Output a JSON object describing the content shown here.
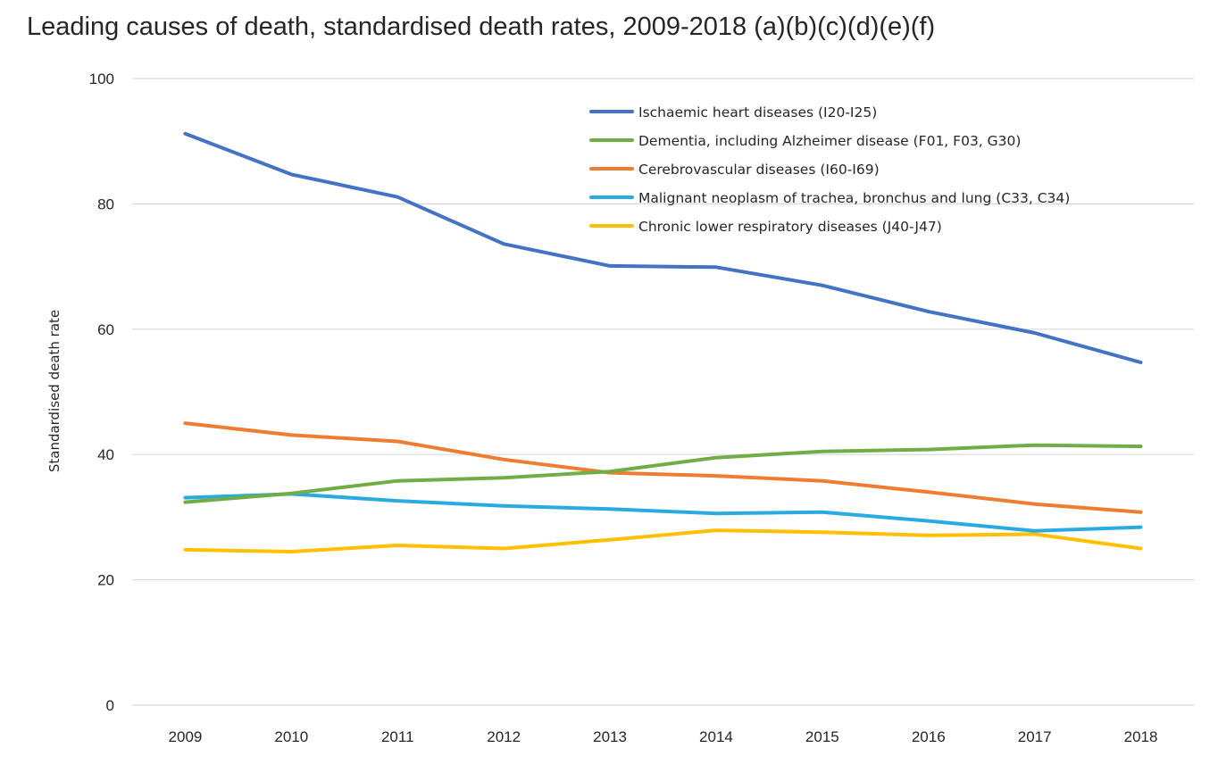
{
  "chart_data": {
    "type": "line",
    "title": "Leading causes of death, standardised death rates, 2009-2018 (a)(b)(c)(d)(e)(f)",
    "xlabel": "",
    "ylabel": "Standardised death rate",
    "ylim": [
      0,
      100
    ],
    "yticks": [
      0,
      20,
      40,
      60,
      80,
      100
    ],
    "grid": true,
    "legend": "top-right",
    "categories": [
      "2009",
      "2010",
      "2011",
      "2012",
      "2013",
      "2014",
      "2015",
      "2016",
      "2017",
      "2018"
    ],
    "series": [
      {
        "name": "Ischaemic heart diseases (I20-I25)",
        "color": "#4472C4",
        "values": [
          91.2,
          84.7,
          81.1,
          73.6,
          70.1,
          69.9,
          67.0,
          62.8,
          59.4,
          54.7
        ]
      },
      {
        "name": "Dementia, including Alzheimer disease (F01, F03, G30)",
        "color": "#70AD47",
        "values": [
          32.4,
          33.8,
          35.8,
          36.3,
          37.3,
          39.5,
          40.5,
          40.8,
          41.5,
          41.3
        ]
      },
      {
        "name": "Cerebrovascular diseases (I60-I69)",
        "color": "#ED7D31",
        "values": [
          45.0,
          43.1,
          42.1,
          39.2,
          37.1,
          36.6,
          35.8,
          34.0,
          32.1,
          30.8
        ]
      },
      {
        "name": "Malignant neoplasm of trachea, bronchus and lung (C33, C34)",
        "color": "#29ABE2",
        "values": [
          33.1,
          33.7,
          32.6,
          31.8,
          31.3,
          30.6,
          30.8,
          29.4,
          27.8,
          28.4
        ]
      },
      {
        "name": "Chronic lower respiratory diseases (J40-J47)",
        "color": "#FFC000",
        "values": [
          24.8,
          24.5,
          25.5,
          25.0,
          26.4,
          27.9,
          27.6,
          27.1,
          27.3,
          25.0
        ]
      }
    ]
  }
}
